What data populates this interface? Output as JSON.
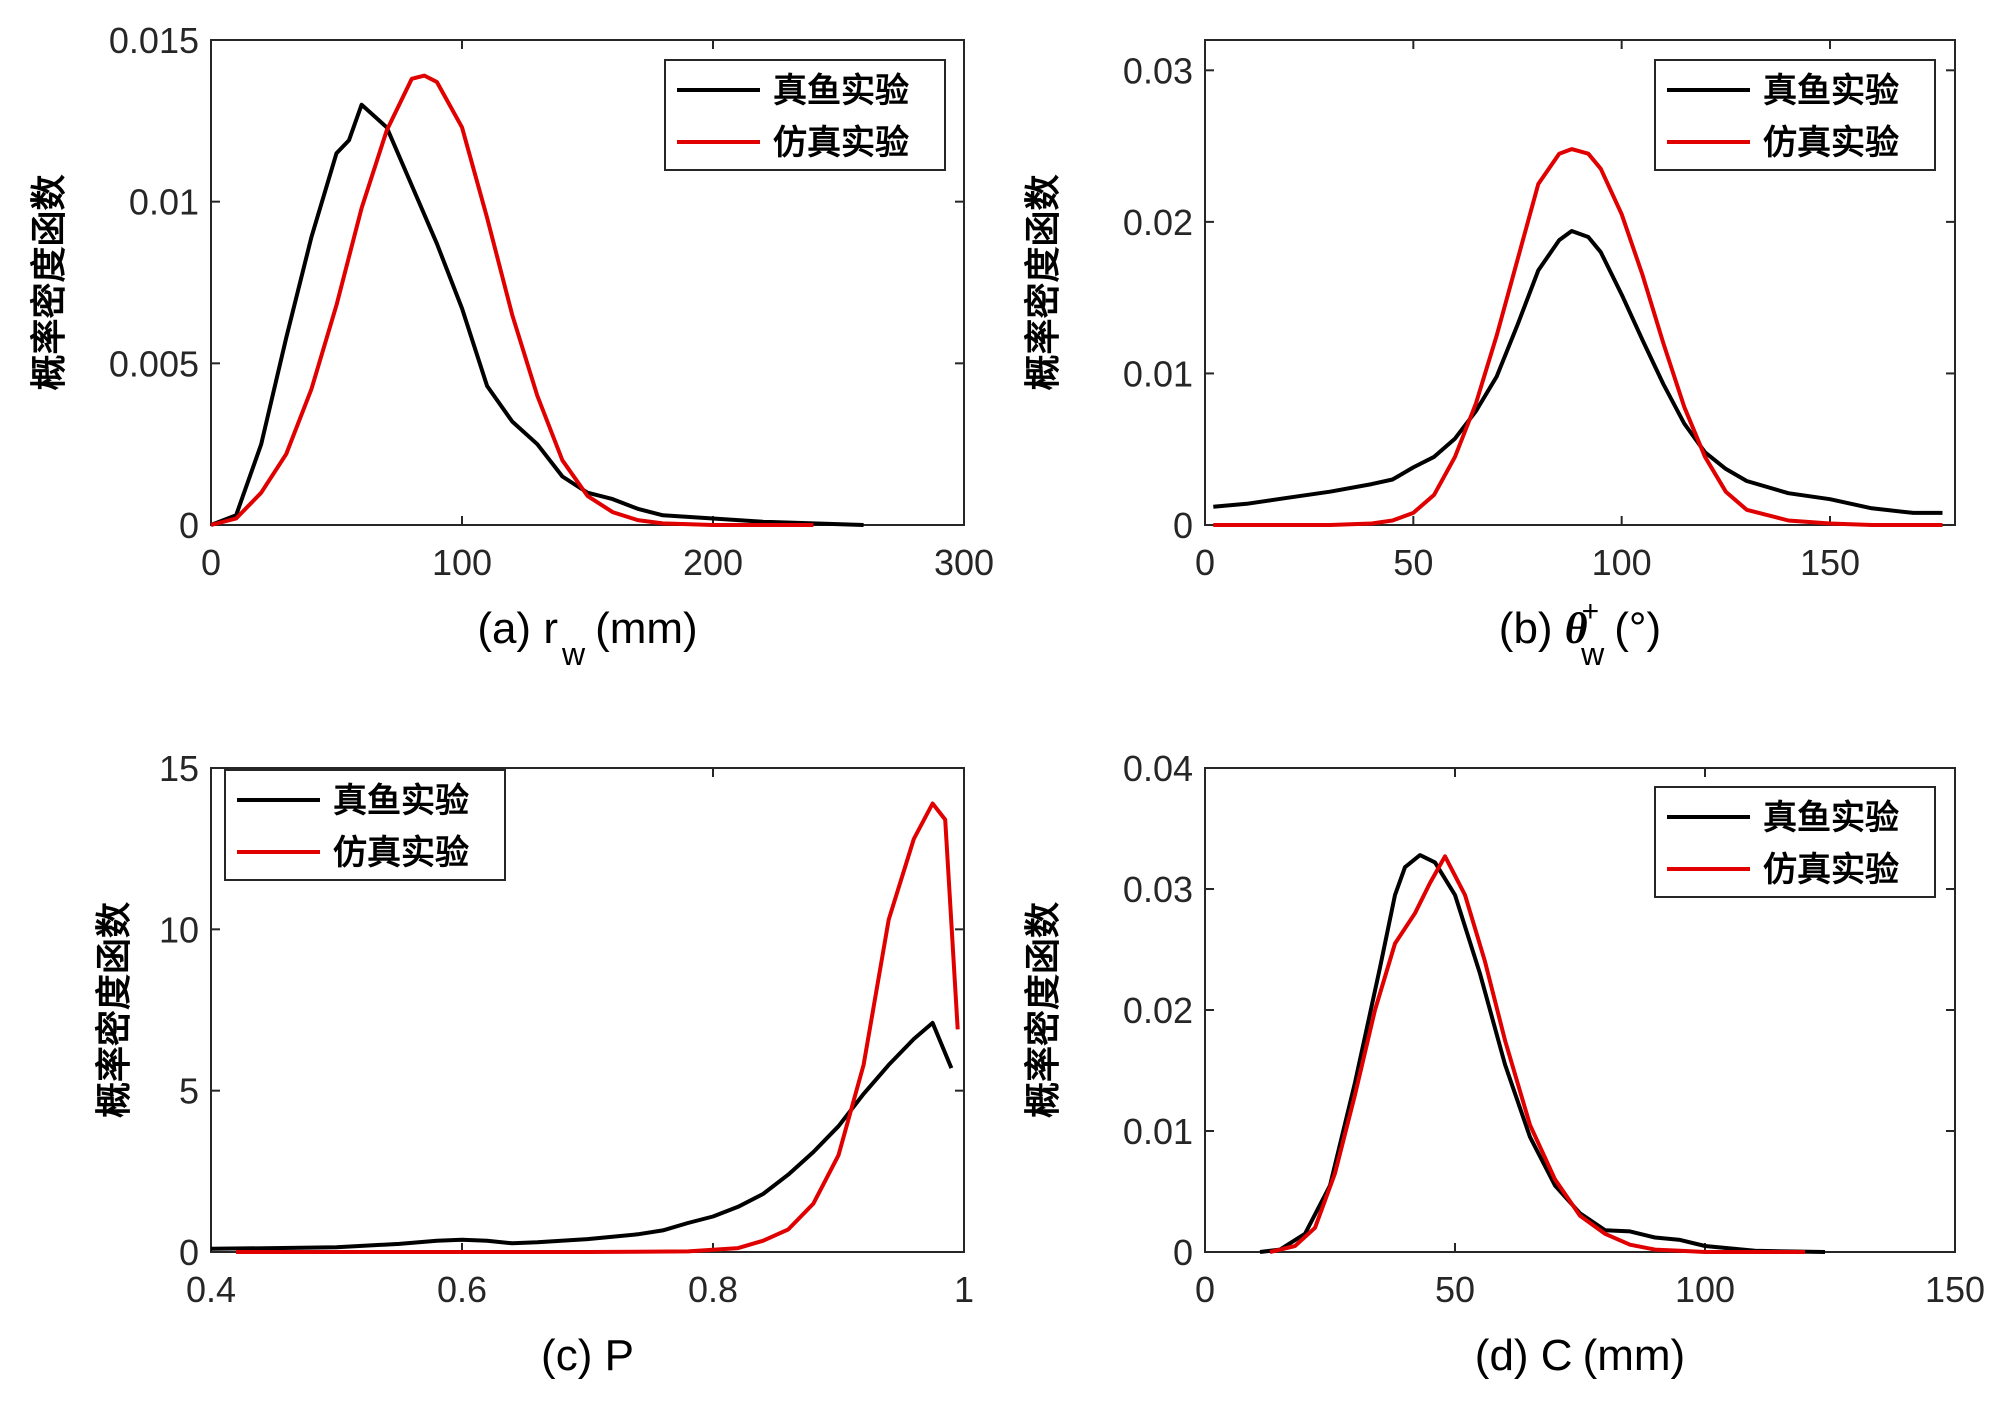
{
  "colors": {
    "series_black": "#000000",
    "series_red": "#e00000",
    "axis": "#262626"
  },
  "chart_data": [
    {
      "id": "a",
      "type": "line",
      "panel_label": "(a)",
      "xlabel_symbol": "r",
      "xlabel_sub": "w",
      "xlabel_sup": "",
      "xlabel_unit": "(mm)",
      "ylabel": "概率密度函数",
      "xlim": [
        0,
        300
      ],
      "ylim": [
        0,
        0.015
      ],
      "xticks": [
        0,
        100,
        200,
        300
      ],
      "xtick_labels": [
        "0",
        "100",
        "200",
        "300"
      ],
      "yticks": [
        0,
        0.005,
        0.01,
        0.015
      ],
      "ytick_labels": [
        "0",
        "0.005",
        "0.01",
        "0.015"
      ],
      "legend_position": "top-right",
      "series": [
        {
          "name": "真鱼实验",
          "color": "#000000",
          "x": [
            0,
            10,
            20,
            30,
            40,
            50,
            55,
            60,
            70,
            80,
            90,
            100,
            110,
            120,
            130,
            140,
            150,
            160,
            170,
            180,
            200,
            220,
            240,
            260
          ],
          "y": [
            0,
            0.0003,
            0.0025,
            0.0058,
            0.0089,
            0.0115,
            0.0119,
            0.013,
            0.0123,
            0.0105,
            0.0087,
            0.0067,
            0.0043,
            0.0032,
            0.0025,
            0.0015,
            0.001,
            0.0008,
            0.0005,
            0.0003,
            0.0002,
            0.0001,
            5e-05,
            0
          ]
        },
        {
          "name": "仿真实验",
          "color": "#e00000",
          "x": [
            0,
            10,
            20,
            30,
            40,
            50,
            60,
            70,
            80,
            85,
            90,
            100,
            110,
            120,
            130,
            140,
            150,
            160,
            170,
            180,
            200,
            220,
            240
          ],
          "y": [
            0,
            0.0002,
            0.001,
            0.0022,
            0.0042,
            0.0068,
            0.0098,
            0.0122,
            0.0138,
            0.0139,
            0.0137,
            0.0123,
            0.0095,
            0.0065,
            0.004,
            0.002,
            0.0009,
            0.0004,
            0.00015,
            5e-05,
            0,
            0,
            0
          ]
        }
      ]
    },
    {
      "id": "b",
      "type": "line",
      "panel_label": "(b)",
      "xlabel_symbol": "θ",
      "xlabel_sub": "w",
      "xlabel_sup": "+",
      "xlabel_unit": "(°)",
      "ylabel": "概率密度函数",
      "xlim": [
        0,
        180
      ],
      "ylim": [
        0,
        0.032
      ],
      "xticks": [
        0,
        50,
        100,
        150
      ],
      "xtick_labels": [
        "0",
        "50",
        "100",
        "150"
      ],
      "yticks": [
        0,
        0.01,
        0.02,
        0.03
      ],
      "ytick_labels": [
        "0",
        "0.01",
        "0.02",
        "0.03"
      ],
      "legend_position": "top-right",
      "series": [
        {
          "name": "真鱼实验",
          "color": "#000000",
          "x": [
            2,
            10,
            20,
            30,
            40,
            45,
            50,
            55,
            60,
            65,
            70,
            75,
            80,
            85,
            88,
            92,
            95,
            100,
            105,
            110,
            115,
            120,
            125,
            130,
            140,
            150,
            160,
            170,
            177
          ],
          "y": [
            0.0012,
            0.0014,
            0.0018,
            0.0022,
            0.0027,
            0.003,
            0.0038,
            0.0045,
            0.0057,
            0.0075,
            0.0098,
            0.0132,
            0.0168,
            0.0188,
            0.0194,
            0.019,
            0.018,
            0.0152,
            0.0122,
            0.0093,
            0.0067,
            0.0048,
            0.0037,
            0.0029,
            0.0021,
            0.0017,
            0.0011,
            0.0008,
            0.0008
          ]
        },
        {
          "name": "仿真实验",
          "color": "#e00000",
          "x": [
            2,
            20,
            30,
            40,
            45,
            50,
            55,
            60,
            65,
            70,
            75,
            80,
            85,
            88,
            92,
            95,
            100,
            105,
            110,
            115,
            120,
            125,
            130,
            140,
            150,
            160,
            177
          ],
          "y": [
            0,
            0,
            0,
            0.0001,
            0.0003,
            0.0008,
            0.002,
            0.0045,
            0.008,
            0.0125,
            0.0175,
            0.0225,
            0.0245,
            0.0248,
            0.0245,
            0.0235,
            0.0205,
            0.0165,
            0.012,
            0.0078,
            0.0045,
            0.0022,
            0.001,
            0.0003,
            0.0001,
            0,
            0
          ]
        }
      ]
    },
    {
      "id": "c",
      "type": "line",
      "panel_label": "(c)",
      "xlabel_symbol": "P",
      "xlabel_sub": "",
      "xlabel_sup": "",
      "xlabel_unit": "",
      "ylabel": "概率密度函数",
      "xlim": [
        0.4,
        1
      ],
      "ylim": [
        0,
        15
      ],
      "xticks": [
        0.4,
        0.6,
        0.8,
        1
      ],
      "xtick_labels": [
        "0.4",
        "0.6",
        "0.8",
        "1"
      ],
      "yticks": [
        0,
        5,
        10,
        15
      ],
      "ytick_labels": [
        "0",
        "5",
        "10",
        "15"
      ],
      "legend_position": "top-left",
      "series": [
        {
          "name": "真鱼实验",
          "color": "#000000",
          "x": [
            0.4,
            0.45,
            0.5,
            0.55,
            0.58,
            0.6,
            0.62,
            0.64,
            0.66,
            0.7,
            0.74,
            0.76,
            0.78,
            0.8,
            0.82,
            0.84,
            0.86,
            0.88,
            0.9,
            0.92,
            0.94,
            0.96,
            0.975,
            0.99
          ],
          "y": [
            0.1,
            0.12,
            0.15,
            0.25,
            0.35,
            0.38,
            0.35,
            0.27,
            0.3,
            0.4,
            0.55,
            0.67,
            0.9,
            1.1,
            1.4,
            1.8,
            2.4,
            3.1,
            3.9,
            4.9,
            5.8,
            6.6,
            7.1,
            5.7
          ]
        },
        {
          "name": "仿真实验",
          "color": "#e00000",
          "x": [
            0.42,
            0.5,
            0.6,
            0.7,
            0.78,
            0.82,
            0.84,
            0.86,
            0.88,
            0.9,
            0.92,
            0.94,
            0.96,
            0.975,
            0.985,
            0.995
          ],
          "y": [
            0,
            0,
            0,
            0,
            0.02,
            0.12,
            0.35,
            0.7,
            1.5,
            3,
            5.8,
            10.3,
            12.8,
            13.9,
            13.4,
            6.9
          ]
        }
      ]
    },
    {
      "id": "d",
      "type": "line",
      "panel_label": "(d)",
      "xlabel_symbol": "C",
      "xlabel_sub": "",
      "xlabel_sup": "",
      "xlabel_unit": "(mm)",
      "ylabel": "概率密度函数",
      "xlim": [
        0,
        150
      ],
      "ylim": [
        0,
        0.04
      ],
      "xticks": [
        0,
        50,
        100,
        150
      ],
      "xtick_labels": [
        "0",
        "50",
        "100",
        "150"
      ],
      "yticks": [
        0,
        0.01,
        0.02,
        0.03,
        0.04
      ],
      "ytick_labels": [
        "0",
        "0.01",
        "0.02",
        "0.03",
        "0.04"
      ],
      "legend_position": "top-right",
      "series": [
        {
          "name": "真鱼实验",
          "color": "#000000",
          "x": [
            11,
            15,
            20,
            25,
            30,
            35,
            38,
            40,
            43,
            46,
            50,
            55,
            60,
            65,
            70,
            75,
            80,
            85,
            90,
            95,
            100,
            110,
            124
          ],
          "y": [
            0,
            0.0002,
            0.0015,
            0.0055,
            0.014,
            0.0235,
            0.0295,
            0.0318,
            0.0328,
            0.0322,
            0.0295,
            0.023,
            0.0155,
            0.0095,
            0.0055,
            0.0032,
            0.0018,
            0.0017,
            0.0012,
            0.001,
            0.0005,
            0.0001,
            0
          ]
        },
        {
          "name": "仿真实验",
          "color": "#e00000",
          "x": [
            13,
            18,
            22,
            26,
            30,
            34,
            38,
            42,
            45,
            48,
            52,
            56,
            60,
            65,
            70,
            75,
            80,
            85,
            90,
            95,
            100,
            110,
            120
          ],
          "y": [
            0,
            0.0005,
            0.002,
            0.0065,
            0.013,
            0.02,
            0.0255,
            0.028,
            0.0305,
            0.0327,
            0.0295,
            0.024,
            0.0175,
            0.0105,
            0.006,
            0.003,
            0.0015,
            0.0006,
            0.0002,
            0.0001,
            0,
            0,
            0
          ]
        }
      ]
    }
  ]
}
